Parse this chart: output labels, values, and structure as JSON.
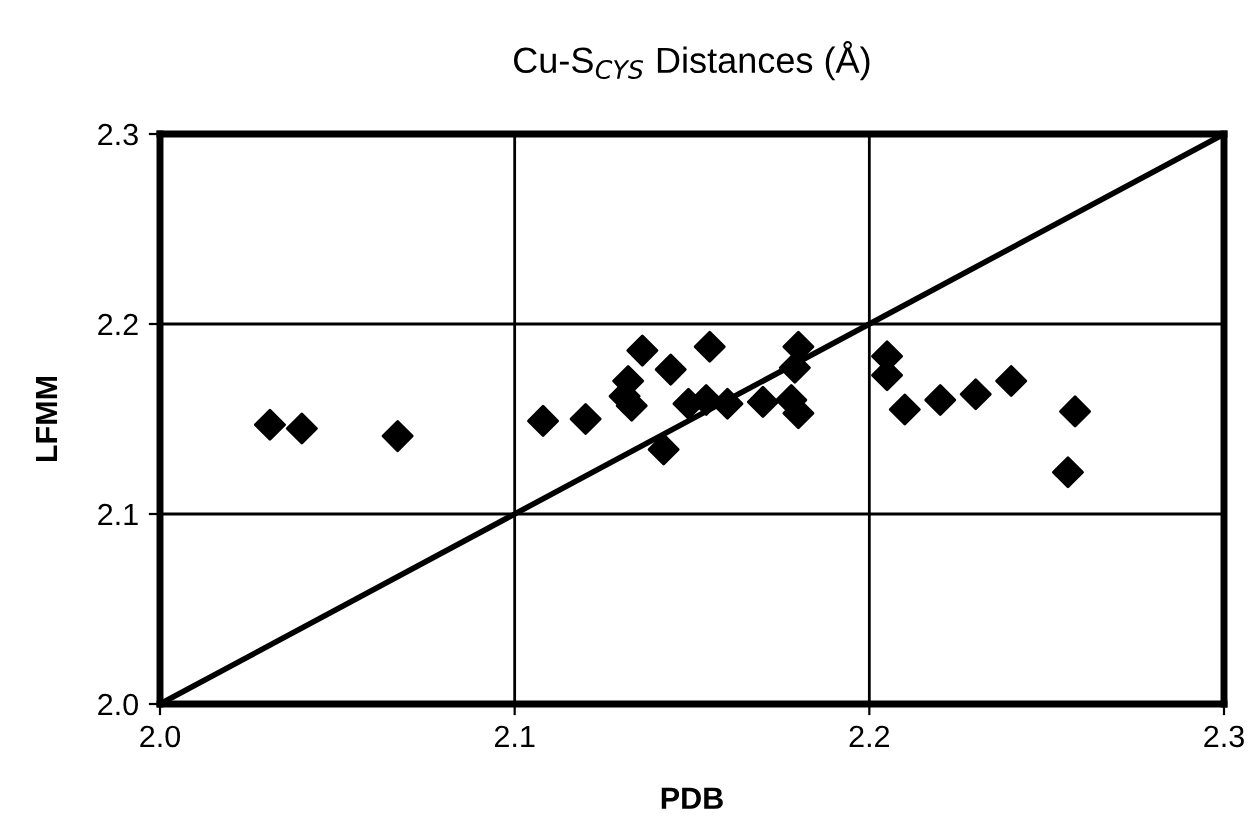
{
  "chart_data": {
    "type": "scatter",
    "title": "Cu-S$_{CYS}$ Distances (Å)",
    "xlabel": "PDB",
    "ylabel": "LFMM",
    "xlim": [
      2.0,
      2.3
    ],
    "ylim": [
      2.0,
      2.3
    ],
    "xticks": [
      {
        "value": 2.0,
        "label": "2.0"
      },
      {
        "value": 2.1,
        "label": "2.1"
      },
      {
        "value": 2.2,
        "label": "2.2"
      },
      {
        "value": 2.3,
        "label": "2.3"
      }
    ],
    "yticks": [
      {
        "value": 2.0,
        "label": "2.0"
      },
      {
        "value": 2.1,
        "label": "2.1"
      },
      {
        "value": 2.2,
        "label": "2.2"
      },
      {
        "value": 2.3,
        "label": "2.3"
      }
    ],
    "grid": true,
    "marker": "diamond",
    "series": [
      {
        "color": "#000000",
        "x": [
          2.031,
          2.04,
          2.067,
          2.108,
          2.12,
          2.132,
          2.131,
          2.133,
          2.136,
          2.144,
          2.142,
          2.149,
          2.154,
          2.155,
          2.16,
          2.17,
          2.18,
          2.179,
          2.178,
          2.18,
          2.205,
          2.205,
          2.21,
          2.22,
          2.23,
          2.24,
          2.258,
          2.256
        ],
        "values": [
          2.147,
          2.145,
          2.141,
          2.149,
          2.15,
          2.17,
          2.162,
          2.157,
          2.186,
          2.176,
          2.134,
          2.158,
          2.16,
          2.188,
          2.158,
          2.159,
          2.188,
          2.177,
          2.16,
          2.153,
          2.183,
          2.173,
          2.155,
          2.16,
          2.163,
          2.17,
          2.154,
          2.122
        ]
      },
      {
        "type": "line",
        "color": "#000000",
        "marker": "none",
        "x": [
          2.0,
          2.3
        ],
        "values": [
          2.0,
          2.3
        ]
      }
    ]
  }
}
